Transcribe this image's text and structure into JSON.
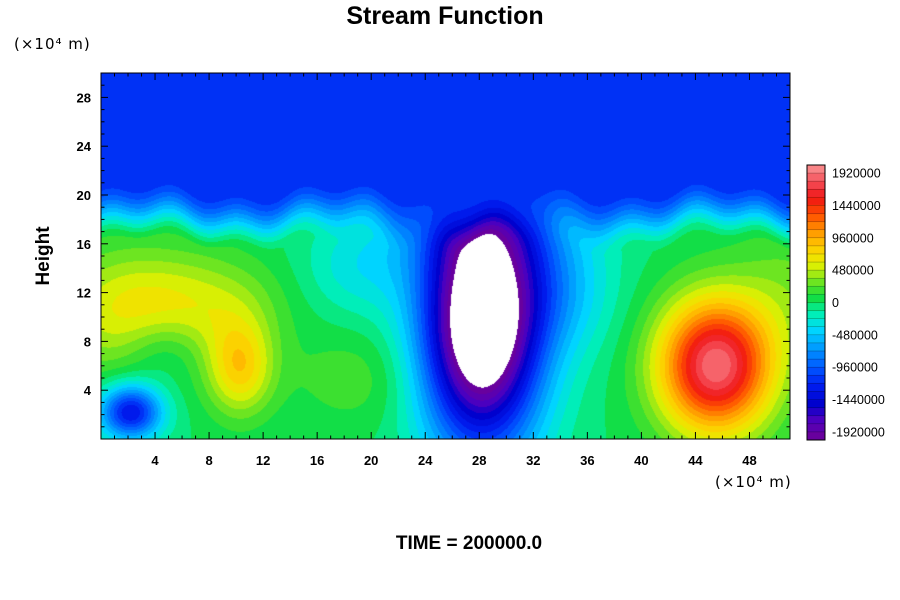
{
  "chart_data": {
    "type": "heatmap",
    "title": "Stream Function",
    "ylabel": "Height",
    "xlabel": "",
    "x_unit": "(×10⁴ m)",
    "y_unit": "(×10⁴ m)",
    "xlim": [
      0,
      51
    ],
    "ylim": [
      0,
      30
    ],
    "x_ticks": [
      4,
      8,
      12,
      16,
      20,
      24,
      28,
      32,
      36,
      40,
      44,
      48
    ],
    "y_ticks": [
      4,
      8,
      12,
      16,
      20,
      24,
      28
    ],
    "colorbar": {
      "ticks": [
        1920000,
        1440000,
        960000,
        480000,
        0,
        -480000,
        -960000,
        -1440000,
        -1920000
      ],
      "tick_labels": [
        "1920000",
        "1440000",
        "960000",
        "480000",
        "0",
        "-480000",
        "-960000",
        "-1440000",
        "-1920000"
      ],
      "range": [
        -2040000,
        2040000
      ],
      "levels": 34,
      "undefined_color": "#ffffff"
    },
    "features": [
      {
        "name": "upper uniform layer",
        "y_range": [
          20,
          30
        ],
        "value": -1150000
      },
      {
        "name": "strong negative cell",
        "x": 28,
        "y": 7.5,
        "value": -2100000
      },
      {
        "name": "positive cell right",
        "x": 45.5,
        "y": 5.5,
        "value": 1950000
      },
      {
        "name": "positive cell left",
        "x": 10.3,
        "y": 4.8,
        "value": 1450000
      },
      {
        "name": "weak positive blob",
        "x": 2.8,
        "y": 11.7,
        "value": 650000
      },
      {
        "name": "weak negative blob",
        "x": 2.3,
        "y": 2.0,
        "value": -1150000
      }
    ],
    "footer": "TIME = 200000.0"
  },
  "colors": {
    "background": "#ffffff",
    "upper_layer": "#0a55ff",
    "frame": "#000000"
  }
}
